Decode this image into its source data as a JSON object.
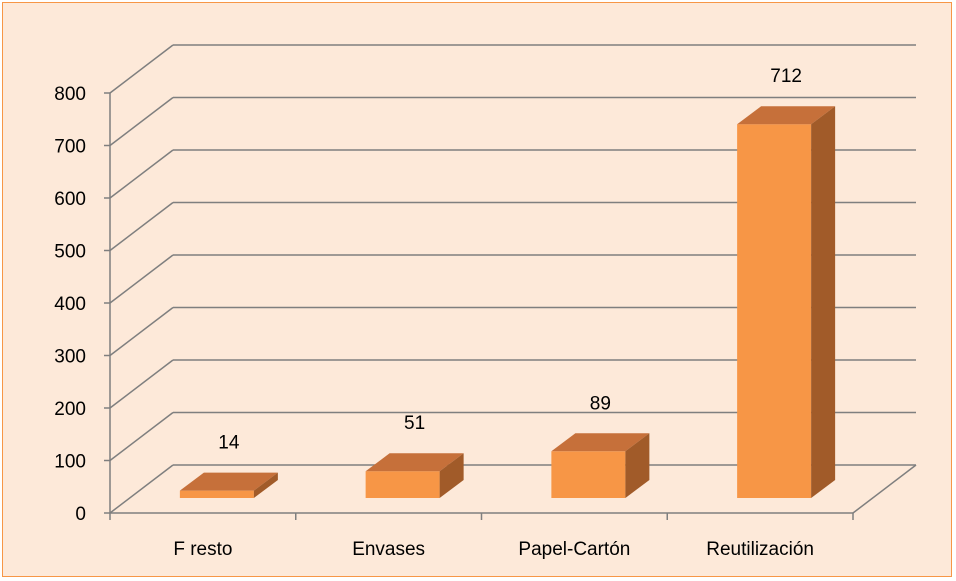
{
  "chart_data": {
    "type": "bar",
    "style": "3d-column",
    "categories": [
      "F resto",
      "Envases",
      "Papel-Cartón",
      "Reutilización"
    ],
    "values": [
      14,
      51,
      89,
      712
    ],
    "data_labels": [
      "14",
      "51",
      "89",
      "712"
    ],
    "y_ticks": [
      "0",
      "100",
      "200",
      "300",
      "400",
      "500",
      "600",
      "700",
      "800"
    ],
    "ylim": [
      0,
      800
    ],
    "grid": true,
    "legend": "none",
    "colors": {
      "background": "#fde9d9",
      "border": "#f79646",
      "bar_front": "#f79646",
      "bar_top": "#c6703a",
      "bar_side": "#a15b29",
      "gridline": "#7f7f7f"
    }
  }
}
